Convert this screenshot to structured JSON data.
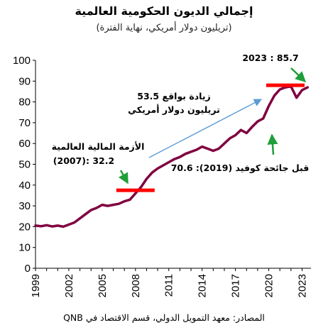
{
  "title": "إجمالي الديون الحكومية العالمية",
  "subtitle": "(تريليون دولار أمريكي، نهاية الفترة)",
  "source": "المصادر: معهد التمويل الدولي، قسم الاقتصاد في QNB",
  "annotations": {
    "peak": "2023 : 85.7",
    "increase_line1": "زيادة بواقع 53.5",
    "increase_line2": "تريليون دولار أمريكي",
    "gfc_line1": "الأزمة المالية العالمية",
    "gfc_line2": "(2007): 32.2",
    "covid": "قبل جائحة كوفيد (2019): 70.6"
  },
  "colors": {
    "line": "#800040",
    "marker": "#ff0000",
    "arrow_green": "#1f9e3a",
    "arrow_blue": "#5b9bd5"
  },
  "chart_data": {
    "type": "line",
    "title": "إجمالي الديون الحكومية العالمية",
    "ylim": [
      0,
      100
    ],
    "yticks": [
      0,
      10,
      20,
      30,
      40,
      50,
      60,
      70,
      80,
      90,
      100
    ],
    "xticks": [
      "1999",
      "2002",
      "2005",
      "2008",
      "2011",
      "2014",
      "2017",
      "2020",
      "2023"
    ],
    "xlim": [
      1999,
      2023.8
    ],
    "grid": false,
    "x": [
      1999.0,
      1999.5,
      2000.0,
      2000.5,
      2001.0,
      2001.5,
      2002.0,
      2002.5,
      2003.0,
      2003.5,
      2004.0,
      2004.5,
      2005.0,
      2005.5,
      2006.0,
      2006.5,
      2007.0,
      2007.5,
      2008.0,
      2008.5,
      2009.0,
      2009.5,
      2010.0,
      2010.5,
      2011.0,
      2011.5,
      2012.0,
      2012.5,
      2013.0,
      2013.5,
      2014.0,
      2014.5,
      2015.0,
      2015.5,
      2016.0,
      2016.5,
      2017.0,
      2017.5,
      2018.0,
      2018.5,
      2019.0,
      2019.5,
      2020.0,
      2020.5,
      2021.0,
      2021.5,
      2022.0,
      2022.5,
      2023.0,
      2023.5
    ],
    "series": [
      {
        "values": [
          20.5,
          20.2,
          20.7,
          20.1,
          20.5,
          20.0,
          21.0,
          22.0,
          24.0,
          26.0,
          28.0,
          29.0,
          30.5,
          30.0,
          30.5,
          31.0,
          32.2,
          33.0,
          36.0,
          39.0,
          43.0,
          46.0,
          48.0,
          49.5,
          51.0,
          52.5,
          53.5,
          55.0,
          56.0,
          57.0,
          58.5,
          57.5,
          56.5,
          57.5,
          60.0,
          62.5,
          64.0,
          66.5,
          65.0,
          68.0,
          70.6,
          72.0,
          78.0,
          83.0,
          86.0,
          87.0,
          87.5,
          82.0,
          85.7,
          87.0
        ]
      }
    ],
    "highlights": [
      {
        "x": 2008.0,
        "y": 37.5
      },
      {
        "x": 2021.5,
        "y": 88.0
      }
    ]
  }
}
